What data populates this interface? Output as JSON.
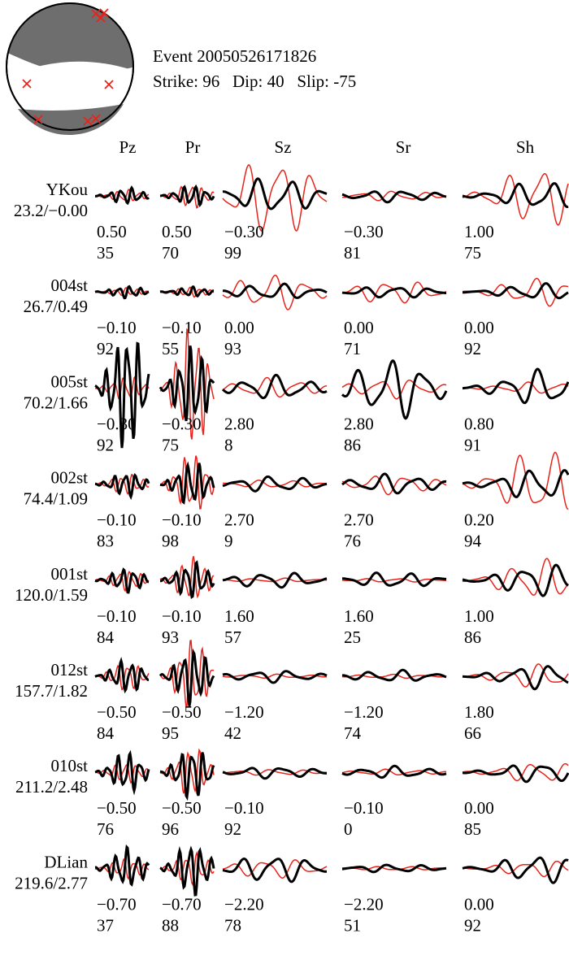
{
  "header": {
    "event_line": "Event 20050526171826",
    "mech_line": "Strike: 96   Dip: 40   Slip: -75"
  },
  "colors": {
    "observed": "#000000",
    "synthetic": "#e8231b",
    "beachball_fill": "#6e6e6e",
    "polarity_marker": "#e8231b"
  },
  "icons": {
    "polarity_marker": "x-mark"
  },
  "chart_data": {
    "type": "line",
    "title": "Event 20050526171826",
    "subtitle": "Strike: 96   Dip: 40   Slip: -75",
    "mechanism": {
      "strike": 96,
      "dip": 40,
      "slip": -75
    },
    "components": [
      "Pz",
      "Pr",
      "Sz",
      "Sr",
      "Sh"
    ],
    "series": [
      {
        "name": "observed",
        "color": "#000000"
      },
      {
        "name": "synthetic",
        "color": "#e8231b"
      }
    ],
    "stations": [
      {
        "name": "YKou",
        "dist": "23.2/−0.00",
        "shifts": [
          "0.50",
          "0.50",
          "−0.30",
          "−0.30",
          "1.00"
        ],
        "ccs": [
          "35",
          "70",
          "99",
          "81",
          "75"
        ]
      },
      {
        "name": "004st",
        "dist": "26.7/0.49",
        "shifts": [
          "−0.10",
          "−0.10",
          "0.00",
          "0.00",
          "0.00"
        ],
        "ccs": [
          "92",
          "55",
          "93",
          "71",
          "92"
        ]
      },
      {
        "name": "005st",
        "dist": "70.2/1.66",
        "shifts": [
          "−0.30",
          "−0.30",
          "2.80",
          "2.80",
          "0.80"
        ],
        "ccs": [
          "92",
          "75",
          "8",
          "86",
          "91"
        ]
      },
      {
        "name": "002st",
        "dist": "74.4/1.09",
        "shifts": [
          "−0.10",
          "−0.10",
          "2.70",
          "2.70",
          "0.20"
        ],
        "ccs": [
          "83",
          "98",
          "9",
          "76",
          "94"
        ]
      },
      {
        "name": "001st",
        "dist": "120.0/1.59",
        "shifts": [
          "−0.10",
          "−0.10",
          "1.60",
          "1.60",
          "1.00"
        ],
        "ccs": [
          "84",
          "93",
          "57",
          "25",
          "86"
        ]
      },
      {
        "name": "012st",
        "dist": "157.7/1.82",
        "shifts": [
          "−0.50",
          "−0.50",
          "−1.20",
          "−1.20",
          "1.80"
        ],
        "ccs": [
          "84",
          "95",
          "42",
          "74",
          "66"
        ]
      },
      {
        "name": "010st",
        "dist": "211.2/2.48",
        "shifts": [
          "−0.50",
          "−0.50",
          "−0.10",
          "−0.10",
          "0.00"
        ],
        "ccs": [
          "76",
          "96",
          "92",
          "0",
          "85"
        ]
      },
      {
        "name": "DLian",
        "dist": "219.6/2.77",
        "shifts": [
          "−0.70",
          "−0.70",
          "−2.20",
          "−2.20",
          "0.00"
        ],
        "ccs": [
          "37",
          "88",
          "78",
          "51",
          "92"
        ]
      }
    ]
  }
}
